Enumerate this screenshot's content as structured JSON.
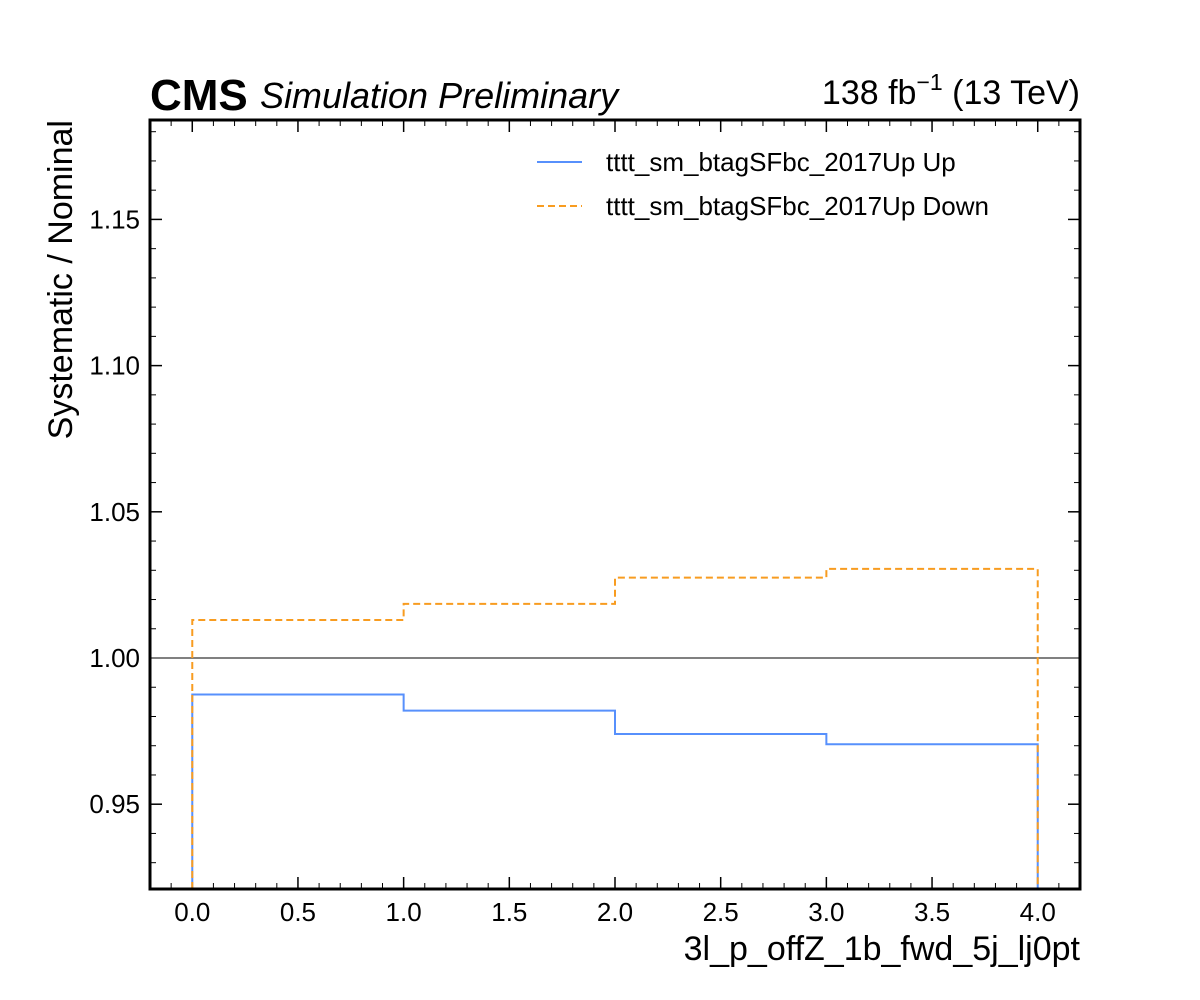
{
  "header": {
    "experiment": "CMS",
    "status": "Simulation Preliminary",
    "lumi_value": "138 fb",
    "lumi_exponent": "−1",
    "energy": " (13 TeV)"
  },
  "chart_data": {
    "type": "line",
    "drawstyle": "steps",
    "xlabel": "3l_p_offZ_1b_fwd_5j_lj0pt",
    "ylabel": "Systematic / Nominal",
    "xlim": [
      -0.2,
      4.2
    ],
    "ylim": [
      0.921,
      1.184
    ],
    "x_ticks": [
      0.0,
      0.5,
      1.0,
      1.5,
      2.0,
      2.5,
      3.0,
      3.5,
      4.0
    ],
    "x_tick_labels": [
      "0.0",
      "0.5",
      "1.0",
      "1.5",
      "2.0",
      "2.5",
      "3.0",
      "3.5",
      "4.0"
    ],
    "y_ticks": [
      0.95,
      1.0,
      1.05,
      1.1,
      1.15
    ],
    "y_tick_labels": [
      "0.95",
      "1.00",
      "1.05",
      "1.10",
      "1.15"
    ],
    "bin_edges": [
      0,
      1,
      2,
      3,
      4
    ],
    "reference_line": {
      "y": 1.0,
      "color": "#808080"
    },
    "legend_position": "top-right",
    "grid": false,
    "series": [
      {
        "name": "tttt_sm_btagSFbc_2017Up Up",
        "color": "#5790fc",
        "style": "solid",
        "values": [
          0.9875,
          0.982,
          0.974,
          0.9705
        ]
      },
      {
        "name": "tttt_sm_btagSFbc_2017Up Down",
        "color": "#f89c20",
        "style": "dashed",
        "values": [
          1.013,
          1.0185,
          1.0275,
          1.0305
        ]
      }
    ]
  }
}
